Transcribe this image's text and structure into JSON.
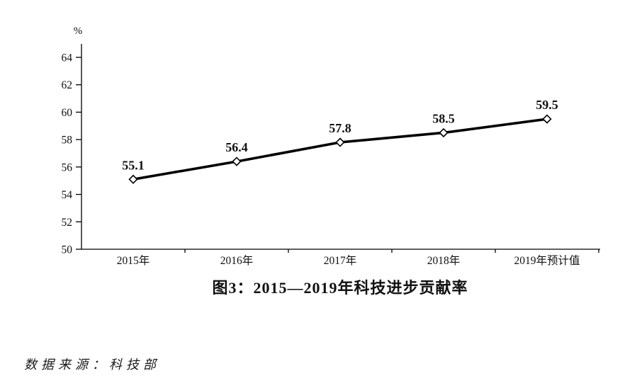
{
  "chart_data": {
    "type": "line",
    "title": "图3：2015—2019年科技进步贡献率",
    "unit_label": "%",
    "categories": [
      "2015年",
      "2016年",
      "2017年",
      "2018年",
      "2019年预计值"
    ],
    "values": [
      55.1,
      56.4,
      57.8,
      58.5,
      59.5
    ],
    "data_labels": [
      "55.1",
      "56.4",
      "57.8",
      "58.5",
      "59.5"
    ],
    "ytick_labels": [
      "50",
      "52",
      "54",
      "56",
      "58",
      "60",
      "62",
      "64"
    ],
    "ylim": [
      50,
      64
    ],
    "ytick_step": 2,
    "grid": false,
    "legend_position": "none",
    "line_color": "#000000",
    "marker": "open-diamond",
    "marker_fill": "#ffffff",
    "text_color": "#111111"
  },
  "source_note": "数据来源：科技部"
}
